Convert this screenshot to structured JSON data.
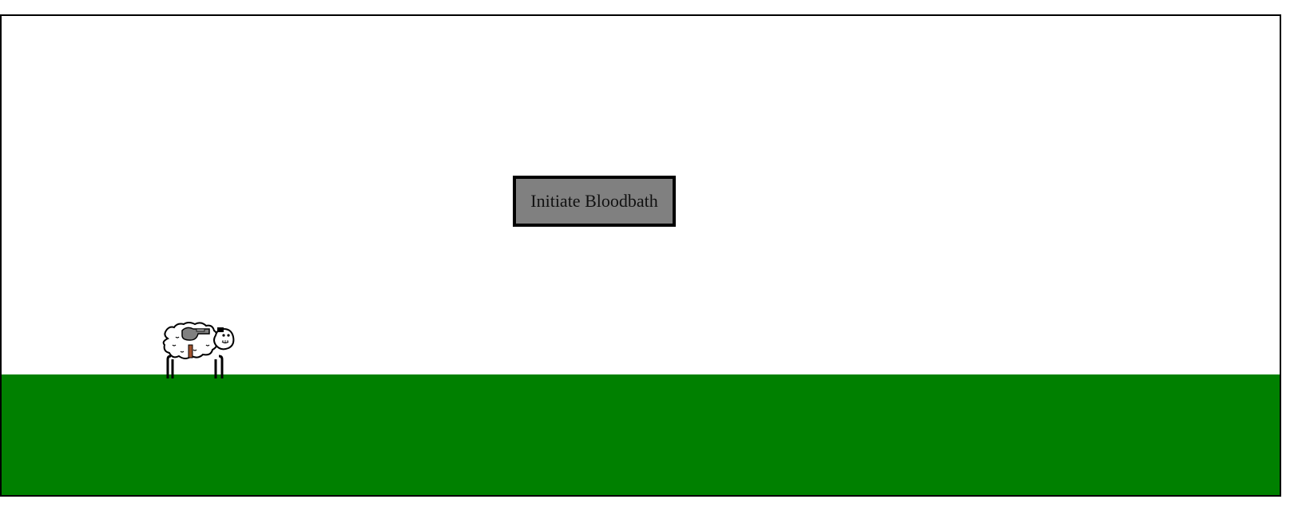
{
  "game": {
    "start_button_label": "Initiate Bloodbath"
  },
  "scene": {
    "sky_color": "#ffffff",
    "ground_color": "#008000",
    "border_color": "#000000",
    "button_color": "#808080"
  },
  "player": {
    "sprite": "armed-sheep",
    "icons": [
      "sheep-icon",
      "gun-icon"
    ]
  }
}
